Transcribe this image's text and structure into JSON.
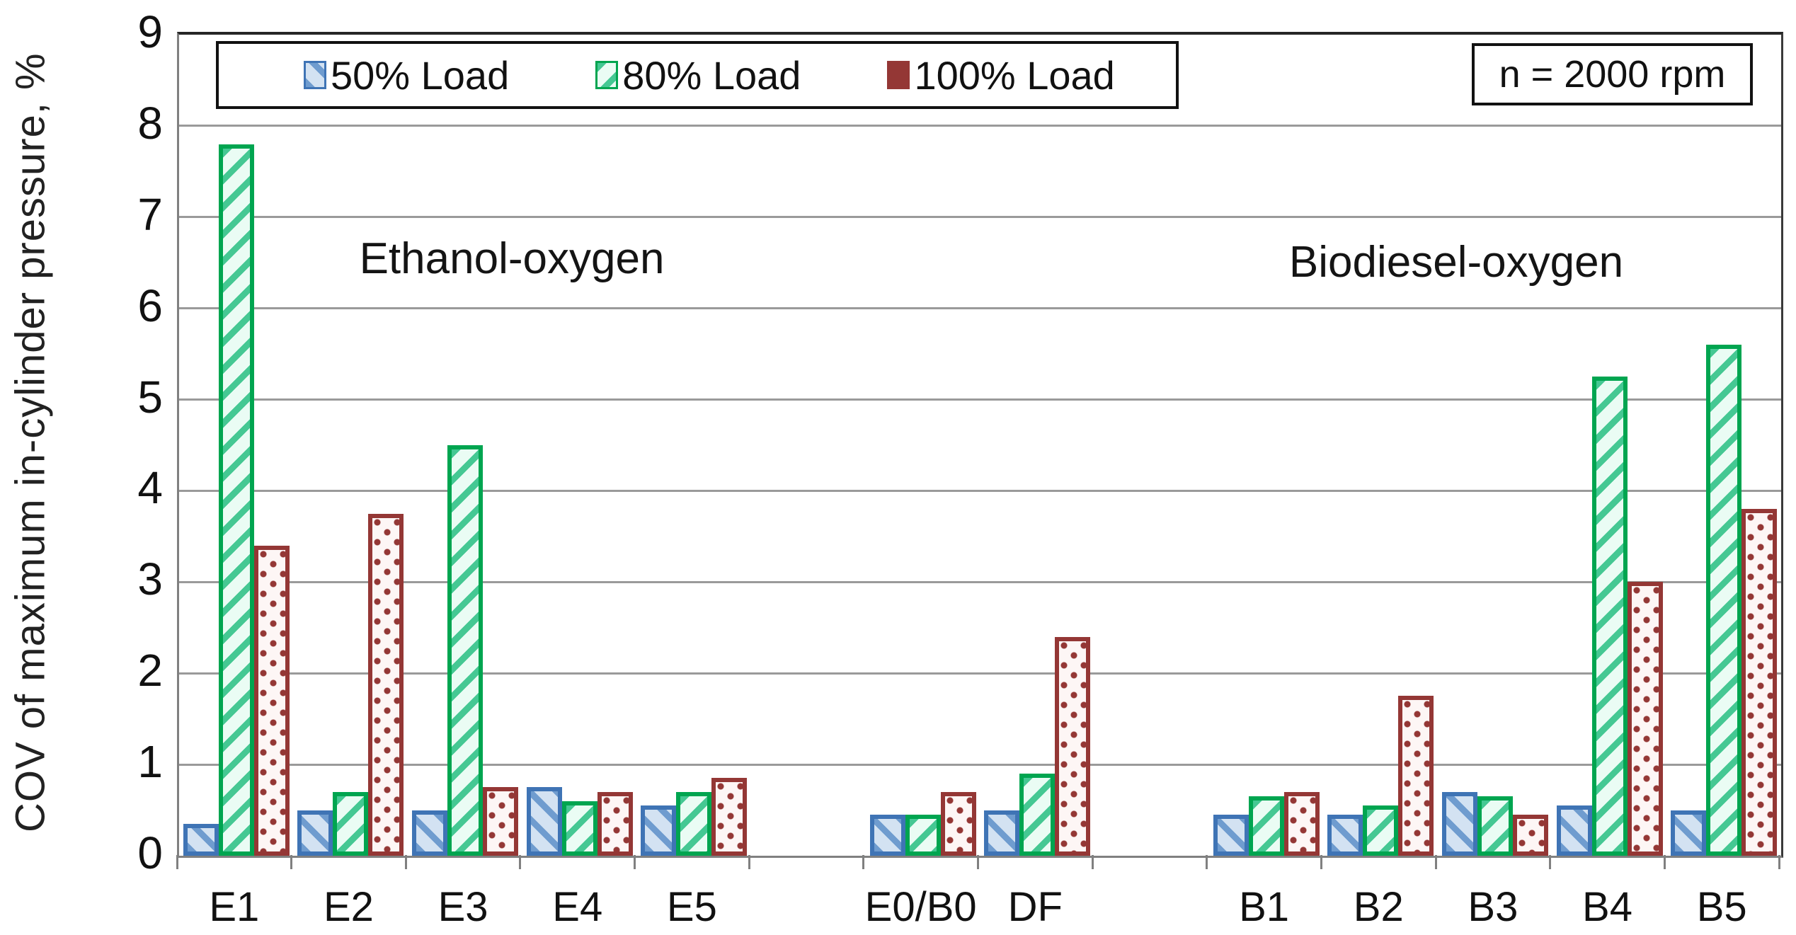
{
  "chart_data": {
    "type": "bar",
    "title": "",
    "xlabel": "",
    "ylabel": "COV of maximum in-cylinder pressure, %",
    "ylim": [
      0,
      9
    ],
    "ytick_step": 1,
    "grid": true,
    "legend_position": "top-left",
    "annotation": "n = 2000 rpm",
    "group_labels": [
      "Ethanol-oxygen",
      "Biodiesel-oxygen"
    ],
    "slots": [
      "E1",
      "E2",
      "E3",
      "E4",
      "E5",
      "",
      "E0/B0",
      "DF",
      "",
      "B1",
      "B2",
      "B3",
      "B4",
      "B5"
    ],
    "categories": [
      "E1",
      "E2",
      "E3",
      "E4",
      "E5",
      "E0/B0",
      "DF",
      "B1",
      "B2",
      "B3",
      "B4",
      "B5"
    ],
    "category_slot_index": [
      0,
      1,
      2,
      3,
      4,
      6,
      7,
      9,
      10,
      11,
      12,
      13
    ],
    "series": [
      {
        "name": "50% Load",
        "pattern": "diag-down",
        "border_color": "#3f74b5",
        "fill_color": "#d3e2f2",
        "stripe_color": "#6f9ccf",
        "values": [
          0.35,
          0.5,
          0.5,
          0.75,
          0.55,
          0.45,
          0.5,
          0.45,
          0.45,
          0.7,
          0.55,
          0.5
        ]
      },
      {
        "name": "80% Load",
        "pattern": "diag-up",
        "border_color": "#00a550",
        "fill_color": "#eafcf4",
        "stripe_color": "#45c893",
        "values": [
          7.8,
          0.7,
          4.5,
          0.6,
          0.7,
          0.45,
          0.9,
          0.65,
          0.55,
          0.65,
          5.25,
          5.6
        ]
      },
      {
        "name": "100% Load",
        "pattern": "dots",
        "border_color": "#943735",
        "fill_color": "#fdf6f5",
        "stripe_color": "#943735",
        "values": [
          3.4,
          3.75,
          0.75,
          0.7,
          0.85,
          0.7,
          2.4,
          0.7,
          1.75,
          0.45,
          3.0,
          3.8
        ]
      }
    ]
  },
  "colors": {
    "gridline": "#9a9a9a",
    "axis": "#808080",
    "text": "#111111"
  }
}
